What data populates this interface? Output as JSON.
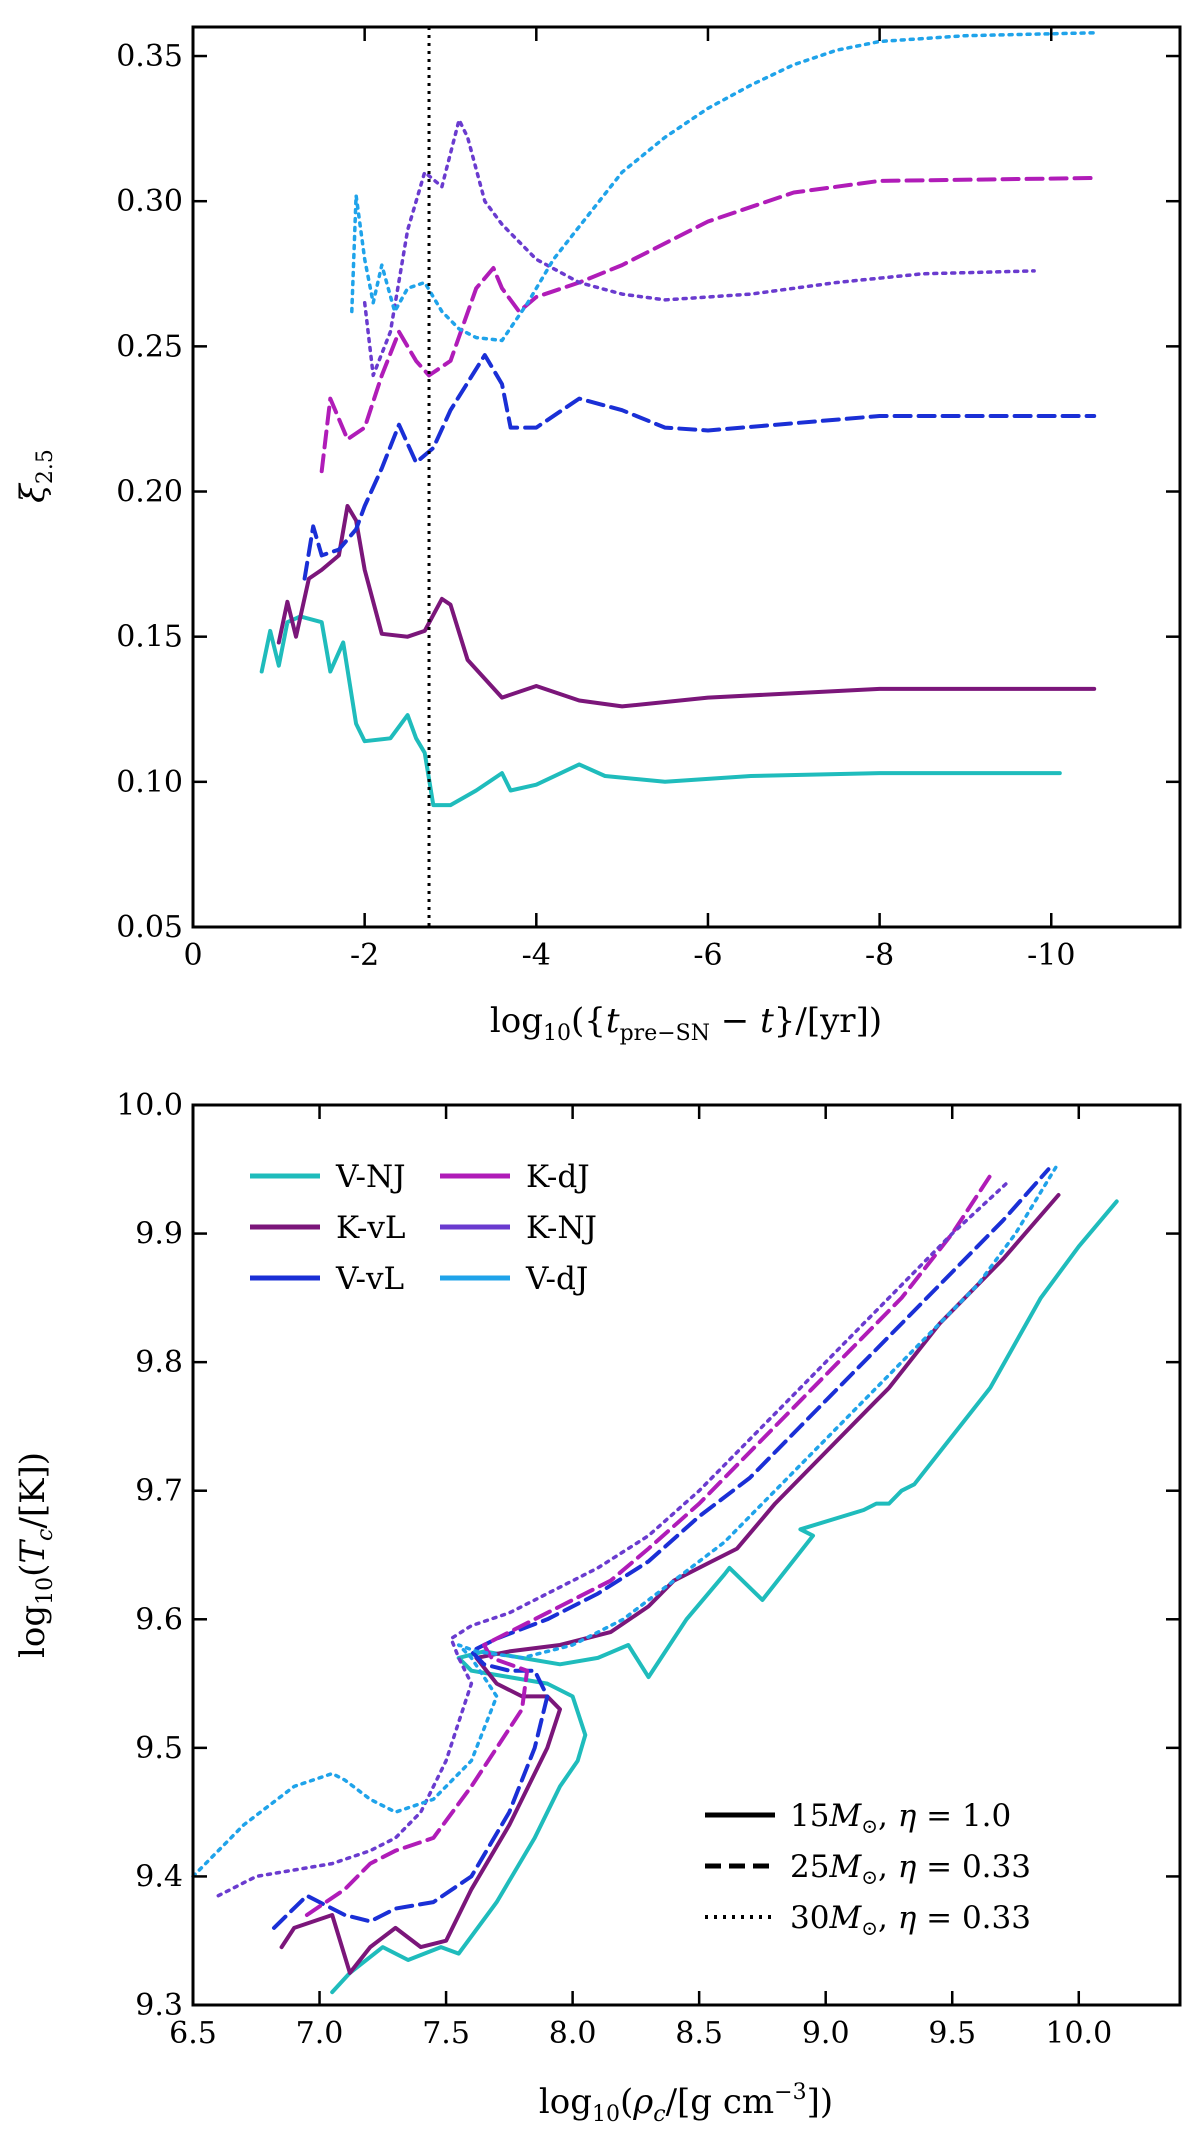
{
  "chart_data": [
    {
      "type": "line",
      "panel": "top",
      "xlabel": "log10({t_pre-SN - t}/[yr])",
      "xlabel_parts": {
        "pre": "log",
        "sub": "10",
        "mid": "({",
        "t": "t",
        "tsub": "pre−SN",
        "minus": " − ",
        "t2": "t",
        "post": "}/[yr])"
      },
      "ylabel": "ξ2.5",
      "ylabel_parts": {
        "sym": "ξ",
        "sub": "2.5"
      },
      "xlim": [
        0,
        -11.5
      ],
      "ylim": [
        0.05,
        0.36
      ],
      "xticks": [
        0,
        -2,
        -4,
        -6,
        -8,
        -10
      ],
      "xtick_labels": [
        "0",
        "-2",
        "-4",
        "-6",
        "-8",
        "-10"
      ],
      "yticks": [
        0.05,
        0.1,
        0.15,
        0.2,
        0.25,
        0.3,
        0.35
      ],
      "ytick_labels": [
        "0.05",
        "0.10",
        "0.15",
        "0.20",
        "0.25",
        "0.30",
        "0.35"
      ],
      "vline_x": -2.75,
      "series": [
        {
          "name": "V-NJ 15",
          "color": "#1fbcbc",
          "style": "solid",
          "x": [
            -0.8,
            -0.9,
            -1.0,
            -1.1,
            -1.25,
            -1.5,
            -1.6,
            -1.75,
            -1.9,
            -2.0,
            -2.3,
            -2.5,
            -2.6,
            -2.7,
            -2.8,
            -3.0,
            -3.3,
            -3.6,
            -3.7,
            -4.0,
            -4.5,
            -4.8,
            -5.5,
            -6.5,
            -8.0,
            -10.1
          ],
          "y": [
            0.138,
            0.152,
            0.14,
            0.155,
            0.157,
            0.155,
            0.138,
            0.148,
            0.12,
            0.114,
            0.115,
            0.123,
            0.115,
            0.11,
            0.092,
            0.092,
            0.097,
            0.103,
            0.097,
            0.099,
            0.106,
            0.102,
            0.1,
            0.102,
            0.103,
            0.103
          ]
        },
        {
          "name": "K-vL 15",
          "color": "#7b167a",
          "style": "solid",
          "x": [
            -1.0,
            -1.1,
            -1.2,
            -1.35,
            -1.5,
            -1.7,
            -1.8,
            -1.9,
            -2.0,
            -2.2,
            -2.5,
            -2.7,
            -2.9,
            -3.0,
            -3.2,
            -3.6,
            -4.0,
            -4.5,
            -5.0,
            -6.0,
            -8.0,
            -10.5
          ],
          "y": [
            0.148,
            0.162,
            0.15,
            0.17,
            0.173,
            0.178,
            0.195,
            0.19,
            0.173,
            0.151,
            0.15,
            0.152,
            0.163,
            0.161,
            0.142,
            0.129,
            0.133,
            0.128,
            0.126,
            0.129,
            0.132,
            0.132
          ]
        },
        {
          "name": "V-vL 25",
          "color": "#1a2fd6",
          "style": "dashed",
          "x": [
            -1.3,
            -1.4,
            -1.5,
            -1.7,
            -1.9,
            -2.0,
            -2.2,
            -2.4,
            -2.6,
            -2.8,
            -3.0,
            -3.4,
            -3.6,
            -3.7,
            -4.0,
            -4.5,
            -5.0,
            -5.5,
            -6.0,
            -8.0,
            -10.5
          ],
          "y": [
            0.17,
            0.188,
            0.178,
            0.18,
            0.187,
            0.195,
            0.208,
            0.223,
            0.21,
            0.215,
            0.228,
            0.247,
            0.237,
            0.222,
            0.222,
            0.232,
            0.228,
            0.222,
            0.221,
            0.226,
            0.226
          ]
        },
        {
          "name": "K-dJ 25",
          "color": "#b01cb8",
          "style": "dashed",
          "x": [
            -1.5,
            -1.6,
            -1.8,
            -2.0,
            -2.2,
            -2.4,
            -2.6,
            -2.75,
            -3.0,
            -3.3,
            -3.5,
            -3.6,
            -3.8,
            -4.0,
            -4.5,
            -5.0,
            -6.0,
            -7.0,
            -8.0,
            -10.5
          ],
          "y": [
            0.207,
            0.232,
            0.218,
            0.222,
            0.24,
            0.255,
            0.245,
            0.24,
            0.245,
            0.27,
            0.277,
            0.27,
            0.262,
            0.267,
            0.272,
            0.278,
            0.293,
            0.303,
            0.307,
            0.308
          ]
        },
        {
          "name": "K-NJ 30",
          "color": "#6a3bcf",
          "style": "dotted",
          "x": [
            -2.0,
            -2.1,
            -2.3,
            -2.5,
            -2.7,
            -2.9,
            -3.1,
            -3.2,
            -3.4,
            -3.6,
            -4.0,
            -4.5,
            -5.0,
            -5.5,
            -6.5,
            -7.5,
            -8.5,
            -9.8
          ],
          "y": [
            0.265,
            0.24,
            0.255,
            0.29,
            0.31,
            0.305,
            0.328,
            0.322,
            0.3,
            0.292,
            0.28,
            0.272,
            0.268,
            0.266,
            0.268,
            0.272,
            0.275,
            0.276
          ]
        },
        {
          "name": "V-dJ 30",
          "color": "#1fa3ea",
          "style": "dotted",
          "x": [
            -1.85,
            -1.9,
            -2.0,
            -2.1,
            -2.2,
            -2.35,
            -2.5,
            -2.7,
            -2.9,
            -3.1,
            -3.3,
            -3.6,
            -3.9,
            -4.2,
            -4.6,
            -5.0,
            -5.5,
            -6.0,
            -6.5,
            -7.0,
            -7.5,
            -8.0,
            -9.0,
            -10.5
          ],
          "y": [
            0.262,
            0.302,
            0.28,
            0.265,
            0.278,
            0.262,
            0.27,
            0.272,
            0.262,
            0.256,
            0.253,
            0.252,
            0.265,
            0.28,
            0.295,
            0.31,
            0.322,
            0.332,
            0.34,
            0.347,
            0.352,
            0.355,
            0.357,
            0.358
          ]
        }
      ]
    },
    {
      "type": "line",
      "panel": "bottom",
      "xlabel": "log10(ρc/[g cm−3])",
      "xlabel_parts": {
        "pre": "log",
        "sub": "10",
        "mid": "(",
        "rho": "ρ",
        "rsub": "c",
        "unit": "/[g cm",
        "sup": "−3",
        "post": "])"
      },
      "ylabel": "log10(Tc/[K])",
      "ylabel_parts": {
        "pre": "log",
        "sub": "10",
        "mid": "(",
        "t": "T",
        "tsub": "c",
        "post": "/[K])"
      },
      "xlim": [
        6.5,
        10.4
      ],
      "ylim": [
        9.3,
        10.0
      ],
      "xticks": [
        6.5,
        7.0,
        7.5,
        8.0,
        8.5,
        9.0,
        9.5,
        10.0
      ],
      "xtick_labels": [
        "6.5",
        "7.0",
        "7.5",
        "8.0",
        "8.5",
        "9.0",
        "9.5",
        "10.0"
      ],
      "yticks": [
        9.3,
        9.4,
        9.5,
        9.6,
        9.7,
        9.8,
        9.9,
        10.0
      ],
      "ytick_labels": [
        "9.3",
        "9.4",
        "9.5",
        "9.6",
        "9.7",
        "9.8",
        "9.9",
        "10.0"
      ],
      "legend_models": [
        {
          "label": "V-NJ",
          "color": "#1fbcbc"
        },
        {
          "label": "K-dJ",
          "color": "#b01cb8"
        },
        {
          "label": "K-vL",
          "color": "#7b167a"
        },
        {
          "label": "K-NJ",
          "color": "#6a3bcf"
        },
        {
          "label": "V-vL",
          "color": "#1a2fd6"
        },
        {
          "label": "V-dJ",
          "color": "#1fa3ea"
        }
      ],
      "legend_styles": [
        {
          "style": "solid",
          "mass": "15",
          "eta": "1.0"
        },
        {
          "style": "dashed",
          "mass": "25",
          "eta": "0.33"
        },
        {
          "style": "dotted",
          "mass": "30",
          "eta": "0.33"
        }
      ],
      "legend_style_template": {
        "m": "M",
        "sun": "⊙",
        "comma": ", ",
        "eta": "η",
        "eq": " = "
      },
      "series": [
        {
          "name": "V-NJ 15",
          "color": "#1fbcbc",
          "style": "solid",
          "x": [
            7.05,
            7.12,
            7.25,
            7.35,
            7.48,
            7.55,
            7.7,
            7.85,
            7.95,
            8.02,
            8.05,
            8.0,
            7.9,
            7.75,
            7.6,
            7.55,
            7.65,
            7.8,
            7.95,
            8.1,
            8.22,
            8.3,
            8.45,
            8.6,
            8.62,
            8.75,
            8.95,
            8.9,
            9.15,
            9.2,
            9.25,
            9.3,
            9.35,
            9.45,
            9.65,
            9.85,
            10.0,
            10.15
          ],
          "y": [
            9.31,
            9.325,
            9.345,
            9.335,
            9.345,
            9.34,
            9.38,
            9.43,
            9.47,
            9.49,
            9.51,
            9.54,
            9.55,
            9.555,
            9.56,
            9.57,
            9.575,
            9.57,
            9.565,
            9.57,
            9.58,
            9.555,
            9.6,
            9.635,
            9.64,
            9.615,
            9.665,
            9.67,
            9.685,
            9.69,
            9.69,
            9.7,
            9.705,
            9.73,
            9.78,
            9.85,
            9.89,
            9.925
          ]
        },
        {
          "name": "K-vL 15",
          "color": "#7b167a",
          "style": "solid",
          "x": [
            6.85,
            6.9,
            7.05,
            7.12,
            7.2,
            7.3,
            7.4,
            7.5,
            7.6,
            7.75,
            7.9,
            7.95,
            7.9,
            7.8,
            7.7,
            7.62,
            7.75,
            7.95,
            8.15,
            8.3,
            8.4,
            8.55,
            8.65,
            8.8,
            9.0,
            9.2,
            9.25,
            9.45,
            9.7,
            9.92
          ],
          "y": [
            9.345,
            9.36,
            9.37,
            9.325,
            9.345,
            9.36,
            9.345,
            9.35,
            9.39,
            9.44,
            9.5,
            9.53,
            9.54,
            9.54,
            9.55,
            9.57,
            9.575,
            9.58,
            9.59,
            9.61,
            9.63,
            9.645,
            9.655,
            9.69,
            9.73,
            9.77,
            9.78,
            9.83,
            9.88,
            9.93
          ]
        },
        {
          "name": "V-vL 25",
          "color": "#1a2fd6",
          "style": "dashed",
          "x": [
            6.82,
            6.95,
            7.1,
            7.2,
            7.3,
            7.45,
            7.6,
            7.75,
            7.85,
            7.9,
            7.85,
            7.75,
            7.65,
            7.6,
            7.7,
            7.9,
            8.1,
            8.3,
            8.5,
            8.7,
            8.9,
            9.1,
            9.3,
            9.5,
            9.7,
            9.88
          ],
          "y": [
            9.36,
            9.385,
            9.37,
            9.365,
            9.375,
            9.38,
            9.4,
            9.45,
            9.5,
            9.54,
            9.56,
            9.56,
            9.565,
            9.575,
            9.585,
            9.6,
            9.62,
            9.645,
            9.68,
            9.71,
            9.75,
            9.79,
            9.83,
            9.87,
            9.91,
            9.95
          ]
        },
        {
          "name": "K-dJ 25",
          "color": "#b01cb8",
          "style": "dashed",
          "x": [
            6.95,
            7.1,
            7.2,
            7.3,
            7.45,
            7.6,
            7.7,
            7.8,
            7.82,
            7.75,
            7.68,
            7.65,
            7.75,
            7.95,
            8.15,
            8.3,
            8.5,
            8.7,
            8.9,
            9.1,
            9.3,
            9.5,
            9.65
          ],
          "y": [
            9.37,
            9.39,
            9.41,
            9.42,
            9.43,
            9.47,
            9.5,
            9.53,
            9.56,
            9.565,
            9.57,
            9.58,
            9.59,
            9.61,
            9.63,
            9.655,
            9.69,
            9.73,
            9.77,
            9.81,
            9.85,
            9.9,
            9.945
          ]
        },
        {
          "name": "K-NJ 30",
          "color": "#6a3bcf",
          "style": "dotted",
          "x": [
            6.6,
            6.75,
            6.9,
            7.05,
            7.2,
            7.3,
            7.4,
            7.5,
            7.55,
            7.6,
            7.55,
            7.52,
            7.6,
            7.75,
            7.9,
            8.1,
            8.3,
            8.5,
            8.7,
            8.9,
            9.1,
            9.3,
            9.5,
            9.72
          ],
          "y": [
            9.385,
            9.4,
            9.405,
            9.41,
            9.42,
            9.43,
            9.45,
            9.49,
            9.52,
            9.55,
            9.57,
            9.585,
            9.595,
            9.605,
            9.62,
            9.64,
            9.665,
            9.7,
            9.74,
            9.78,
            9.82,
            9.86,
            9.9,
            9.94
          ]
        },
        {
          "name": "V-dJ 30",
          "color": "#1fa3ea",
          "style": "dotted",
          "x": [
            6.5,
            6.7,
            6.9,
            7.05,
            7.1,
            7.2,
            7.3,
            7.45,
            7.6,
            7.7,
            7.6,
            7.55,
            7.62,
            7.8,
            8.0,
            8.2,
            8.4,
            8.6,
            8.8,
            9.0,
            9.2,
            9.4,
            9.6,
            9.75,
            9.92
          ],
          "y": [
            9.4,
            9.44,
            9.47,
            9.48,
            9.475,
            9.46,
            9.45,
            9.46,
            9.49,
            9.54,
            9.57,
            9.58,
            9.575,
            9.57,
            9.58,
            9.6,
            9.63,
            9.66,
            9.7,
            9.74,
            9.78,
            9.82,
            9.86,
            9.9,
            9.955
          ]
        }
      ]
    }
  ]
}
